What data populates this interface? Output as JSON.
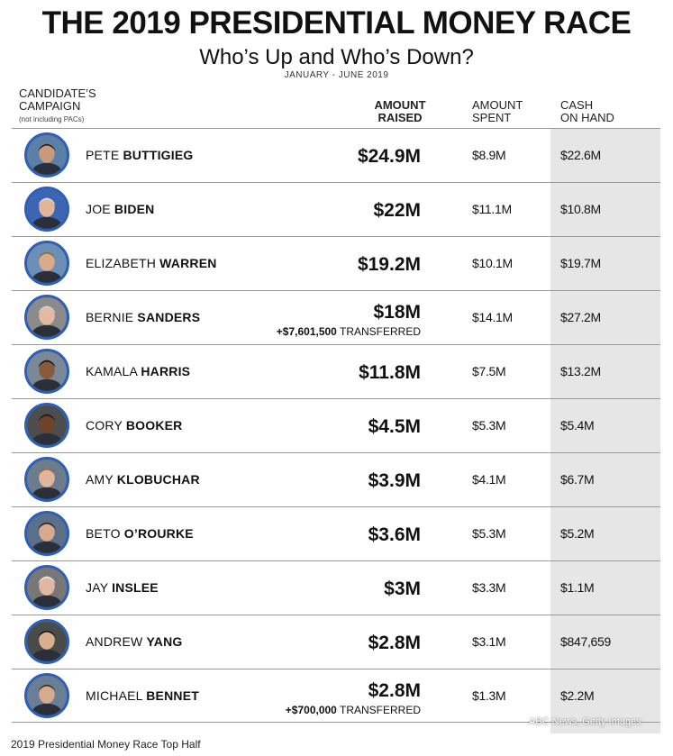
{
  "title": "THE 2019 PRESIDENTIAL MONEY RACE",
  "subtitle": "Who’s Up and Who’s Down?",
  "date_range": "JANUARY - JUNE 2019",
  "headers": {
    "candidate_line1": "CANDIDATE’S",
    "candidate_line2": "CAMPAIGN",
    "candidate_note": "(not including PACs)",
    "raised_line1": "AMOUNT",
    "raised_line2": "RAISED",
    "spent_line1": "AMOUNT",
    "spent_line2": "SPENT",
    "cash_line1": "CASH",
    "cash_line2": "ON HAND"
  },
  "colors": {
    "avatar_ring": "#2c5fb5",
    "cash_column_bg": "#e6e6e6",
    "divider": "#999999"
  },
  "chart_data": {
    "type": "table",
    "title": "THE 2019 PRESIDENTIAL MONEY RACE",
    "subtitle": "Who’s Up and Who’s Down?",
    "columns": [
      "CANDIDATE’S CAMPAIGN",
      "AMOUNT RAISED",
      "AMOUNT SPENT",
      "CASH ON HAND"
    ],
    "rows": [
      {
        "first": "PETE",
        "last": "BUTTIGIEG",
        "raised": "$24.9M",
        "spent": "$8.9M",
        "cash": "$22.6M",
        "transfer_amount": "",
        "transfer_label": ""
      },
      {
        "first": "JOE",
        "last": "BIDEN",
        "raised": "$22M",
        "spent": "$11.1M",
        "cash": "$10.8M",
        "transfer_amount": "",
        "transfer_label": ""
      },
      {
        "first": "ELIZABETH",
        "last": "WARREN",
        "raised": "$19.2M",
        "spent": "$10.1M",
        "cash": "$19.7M",
        "transfer_amount": "",
        "transfer_label": ""
      },
      {
        "first": "BERNIE",
        "last": "SANDERS",
        "raised": "$18M",
        "spent": "$14.1M",
        "cash": "$27.2M",
        "transfer_amount": "+$7,601,500",
        "transfer_label": "TRANSFERRED"
      },
      {
        "first": "KAMALA",
        "last": "HARRIS",
        "raised": "$11.8M",
        "spent": "$7.5M",
        "cash": "$13.2M",
        "transfer_amount": "",
        "transfer_label": ""
      },
      {
        "first": "CORY",
        "last": "BOOKER",
        "raised": "$4.5M",
        "spent": "$5.3M",
        "cash": "$5.4M",
        "transfer_amount": "",
        "transfer_label": ""
      },
      {
        "first": "AMY",
        "last": "KLOBUCHAR",
        "raised": "$3.9M",
        "spent": "$4.1M",
        "cash": "$6.7M",
        "transfer_amount": "",
        "transfer_label": ""
      },
      {
        "first": "BETO",
        "last": "O’ROURKE",
        "raised": "$3.6M",
        "spent": "$5.3M",
        "cash": "$5.2M",
        "transfer_amount": "",
        "transfer_label": ""
      },
      {
        "first": "JAY",
        "last": "INSLEE",
        "raised": "$3M",
        "spent": "$3.3M",
        "cash": "$1.1M",
        "transfer_amount": "",
        "transfer_label": ""
      },
      {
        "first": "ANDREW",
        "last": "YANG",
        "raised": "$2.8M",
        "spent": "$3.1M",
        "cash": "$847,659",
        "transfer_amount": "",
        "transfer_label": ""
      },
      {
        "first": "MICHAEL",
        "last": "BENNET",
        "raised": "$2.8M",
        "spent": "$1.3M",
        "cash": "$2.2M",
        "transfer_amount": "+$700,000",
        "transfer_label": "TRANSFERRED"
      }
    ]
  },
  "credit": "ABC News, Getty Images",
  "caption": "2019 Presidential Money Race Top Half"
}
